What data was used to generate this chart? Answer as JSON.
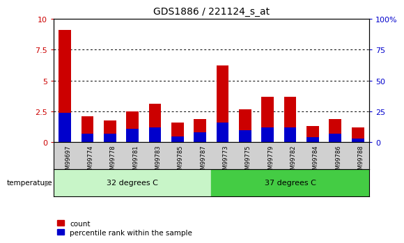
{
  "title": "GDS1886 / 221124_s_at",
  "samples": [
    "GSM99697",
    "GSM99774",
    "GSM99778",
    "GSM99781",
    "GSM99783",
    "GSM99785",
    "GSM99787",
    "GSM99773",
    "GSM99775",
    "GSM99779",
    "GSM99782",
    "GSM99784",
    "GSM99786",
    "GSM99788"
  ],
  "count_values": [
    9.1,
    2.1,
    1.8,
    2.5,
    3.1,
    1.6,
    1.9,
    6.2,
    2.7,
    3.7,
    3.7,
    1.3,
    1.9,
    1.2
  ],
  "percentile_values": [
    2.4,
    0.7,
    0.7,
    1.1,
    1.2,
    0.5,
    0.8,
    1.6,
    1.0,
    1.2,
    1.2,
    0.4,
    0.7,
    0.3
  ],
  "count_color": "#cc0000",
  "percentile_color": "#0000cc",
  "bar_width": 0.55,
  "ylim_left": [
    0,
    10
  ],
  "ylim_right": [
    0,
    100
  ],
  "yticks_left": [
    0,
    2.5,
    5,
    7.5,
    10
  ],
  "yticks_right": [
    0,
    25,
    50,
    75,
    100
  ],
  "ytick_labels_left": [
    "0",
    "2.5",
    "5",
    "7.5",
    "10"
  ],
  "ytick_labels_right": [
    "0",
    "25",
    "50",
    "75",
    "100%"
  ],
  "grid_color": "#000000",
  "tick_bg_color": "#d0d0d0",
  "group1_label": "32 degrees C",
  "group2_label": "37 degrees C",
  "group1_color": "#c8f5c8",
  "group2_color": "#44cc44",
  "group1_indices": [
    0,
    1,
    2,
    3,
    4,
    5,
    6
  ],
  "group2_indices": [
    7,
    8,
    9,
    10,
    11,
    12,
    13
  ],
  "temperature_label": "temperature",
  "legend_count": "count",
  "legend_percentile": "percentile rank within the sample",
  "title_fontsize": 10,
  "axis_label_color_left": "#cc0000",
  "axis_label_color_right": "#0000cc"
}
